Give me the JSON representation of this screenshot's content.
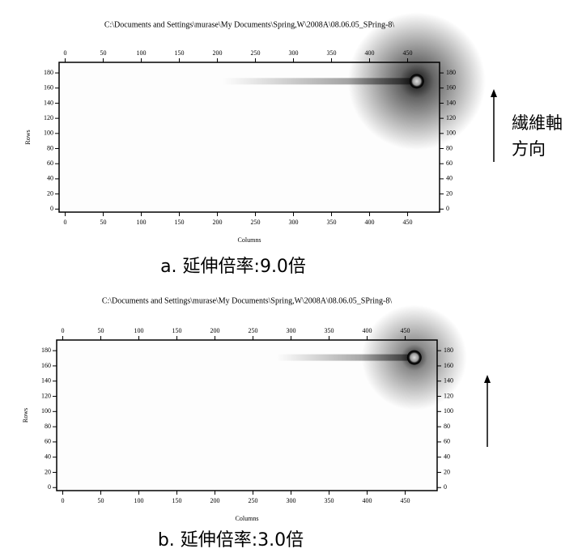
{
  "chart_data": [
    {
      "type": "image",
      "title": "C:\\Documents and Settings\\murase\\My Documents\\Spring,W\\2008A\\08.06.05_SPring-8\\",
      "xlabel": "Columns",
      "ylabel": "Rows",
      "caption": "a. 延伸倍率:9.0倍",
      "xlim": [
        -8,
        492
      ],
      "ylim": [
        -4,
        194
      ],
      "xticks": [
        0,
        50,
        100,
        150,
        200,
        250,
        300,
        350,
        400,
        450
      ],
      "yticks": [
        0,
        20,
        40,
        60,
        80,
        100,
        120,
        140,
        160,
        180
      ],
      "spot": {
        "x": 462,
        "y": 169
      }
    },
    {
      "type": "image",
      "title": "C:\\Documents and Settings\\murase\\My Documents\\Spring,W\\2008A\\08.06.05_SPring-8\\",
      "xlabel": "Columns",
      "ylabel": "Rows",
      "caption": "b. 延伸倍率:3.0倍",
      "xlim": [
        -8,
        492
      ],
      "ylim": [
        -4,
        194
      ],
      "xticks": [
        0,
        50,
        100,
        150,
        200,
        250,
        300,
        350,
        400,
        450
      ],
      "yticks": [
        0,
        20,
        40,
        60,
        80,
        100,
        120,
        140,
        160,
        180
      ],
      "spot": {
        "x": 462,
        "y": 171
      }
    }
  ],
  "annotation": [
    "繊維軸",
    "方向"
  ]
}
